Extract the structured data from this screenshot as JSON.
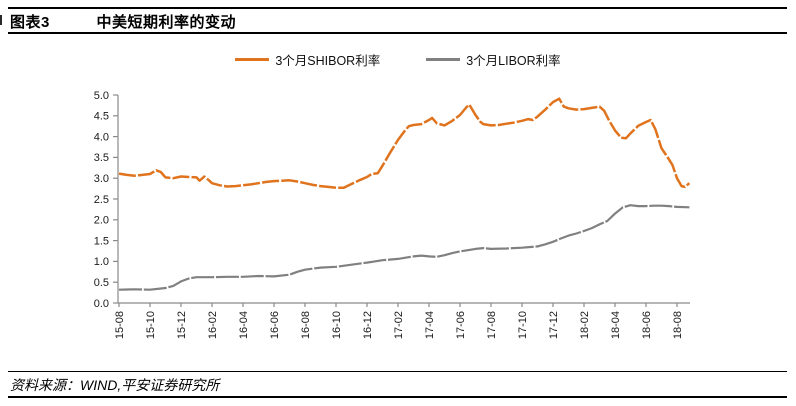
{
  "header": {
    "figure_label": "图表3",
    "title": "中美短期利率的变动"
  },
  "legend": [
    {
      "label": "3个月SHIBOR利率",
      "color": "#E0731D"
    },
    {
      "label": "3个月LIBOR利率",
      "color": "#808080"
    }
  ],
  "footer": {
    "source": "资料来源：WIND,平安证券研究所"
  },
  "chart_data": {
    "type": "line",
    "title": "中美短期利率的变动",
    "xlabel": "",
    "ylabel": "",
    "grid": false,
    "legend_position": "top-center",
    "x_unit": "months since 2015-08",
    "ylim": [
      0,
      5
    ],
    "y_tick_step": 0.5,
    "y_tick_labels": [
      "0.0",
      "0.5",
      "1.0",
      "1.5",
      "2.0",
      "2.5",
      "3.0",
      "3.5",
      "4.0",
      "4.5",
      "5.0"
    ],
    "x_tick_labels": [
      "15-08",
      "15-10",
      "15-12",
      "16-02",
      "16-04",
      "16-06",
      "16-08",
      "16-10",
      "16-12",
      "17-02",
      "17-04",
      "17-06",
      "17-08",
      "17-10",
      "17-12",
      "18-02",
      "18-04",
      "18-06",
      "18-08"
    ],
    "x_tick_months": [
      0,
      2,
      4,
      6,
      8,
      10,
      12,
      14,
      16,
      18,
      20,
      22,
      24,
      26,
      28,
      30,
      32,
      34,
      36
    ],
    "series": [
      {
        "name": "3个月SHIBOR利率",
        "color": "#E0731D",
        "points": [
          [
            0,
            3.11
          ],
          [
            0.5,
            3.08
          ],
          [
            1,
            3.06
          ],
          [
            1.5,
            3.08
          ],
          [
            2,
            3.1
          ],
          [
            2.4,
            3.19
          ],
          [
            2.7,
            3.15
          ],
          [
            3,
            3.02
          ],
          [
            3.5,
            3.0
          ],
          [
            4,
            3.04
          ],
          [
            4.5,
            3.03
          ],
          [
            5,
            3.02
          ],
          [
            5.2,
            2.94
          ],
          [
            5.5,
            3.04
          ],
          [
            5.8,
            2.95
          ],
          [
            6,
            2.88
          ],
          [
            6.5,
            2.83
          ],
          [
            7,
            2.8
          ],
          [
            7.5,
            2.81
          ],
          [
            8,
            2.83
          ],
          [
            8.5,
            2.85
          ],
          [
            9,
            2.88
          ],
          [
            9.5,
            2.91
          ],
          [
            10,
            2.93
          ],
          [
            10.5,
            2.94
          ],
          [
            11,
            2.95
          ],
          [
            11.5,
            2.92
          ],
          [
            12,
            2.88
          ],
          [
            12.5,
            2.84
          ],
          [
            13,
            2.81
          ],
          [
            13.5,
            2.79
          ],
          [
            14,
            2.77
          ],
          [
            14.5,
            2.77
          ],
          [
            15,
            2.86
          ],
          [
            15.5,
            2.95
          ],
          [
            16,
            3.03
          ],
          [
            16.3,
            3.1
          ],
          [
            16.7,
            3.12
          ],
          [
            17,
            3.3
          ],
          [
            17.5,
            3.62
          ],
          [
            18,
            3.92
          ],
          [
            18.4,
            4.12
          ],
          [
            18.7,
            4.25
          ],
          [
            19,
            4.28
          ],
          [
            19.5,
            4.3
          ],
          [
            20,
            4.4
          ],
          [
            20.2,
            4.45
          ],
          [
            20.5,
            4.32
          ],
          [
            21,
            4.27
          ],
          [
            21.5,
            4.38
          ],
          [
            22,
            4.52
          ],
          [
            22.4,
            4.7
          ],
          [
            22.6,
            4.77
          ],
          [
            23,
            4.52
          ],
          [
            23.3,
            4.36
          ],
          [
            23.5,
            4.3
          ],
          [
            24,
            4.27
          ],
          [
            24.5,
            4.28
          ],
          [
            25,
            4.31
          ],
          [
            25.5,
            4.34
          ],
          [
            26,
            4.38
          ],
          [
            26.4,
            4.42
          ],
          [
            26.7,
            4.4
          ],
          [
            27,
            4.48
          ],
          [
            27.5,
            4.65
          ],
          [
            28,
            4.83
          ],
          [
            28.4,
            4.91
          ],
          [
            28.7,
            4.72
          ],
          [
            29,
            4.68
          ],
          [
            29.5,
            4.65
          ],
          [
            30,
            4.66
          ],
          [
            30.5,
            4.69
          ],
          [
            31,
            4.72
          ],
          [
            31.3,
            4.62
          ],
          [
            31.6,
            4.4
          ],
          [
            32,
            4.15
          ],
          [
            32.4,
            3.97
          ],
          [
            32.7,
            3.96
          ],
          [
            33,
            4.08
          ],
          [
            33.5,
            4.26
          ],
          [
            34,
            4.35
          ],
          [
            34.3,
            4.4
          ],
          [
            34.6,
            4.18
          ],
          [
            35,
            3.72
          ],
          [
            35.4,
            3.5
          ],
          [
            35.7,
            3.32
          ],
          [
            36,
            3.0
          ],
          [
            36.3,
            2.81
          ],
          [
            36.5,
            2.79
          ],
          [
            36.8,
            2.88
          ]
        ]
      },
      {
        "name": "3个月LIBOR利率",
        "color": "#808080",
        "points": [
          [
            0,
            0.32
          ],
          [
            1,
            0.33
          ],
          [
            2,
            0.32
          ],
          [
            3,
            0.36
          ],
          [
            3.5,
            0.41
          ],
          [
            4,
            0.52
          ],
          [
            4.5,
            0.59
          ],
          [
            5,
            0.62
          ],
          [
            6,
            0.62
          ],
          [
            7,
            0.63
          ],
          [
            8,
            0.63
          ],
          [
            9,
            0.65
          ],
          [
            10,
            0.64
          ],
          [
            11,
            0.68
          ],
          [
            11.5,
            0.75
          ],
          [
            12,
            0.8
          ],
          [
            13,
            0.85
          ],
          [
            14,
            0.87
          ],
          [
            15,
            0.92
          ],
          [
            16,
            0.97
          ],
          [
            16.5,
            1.0
          ],
          [
            17,
            1.03
          ],
          [
            18,
            1.06
          ],
          [
            19,
            1.12
          ],
          [
            19.5,
            1.14
          ],
          [
            20,
            1.12
          ],
          [
            20.5,
            1.11
          ],
          [
            21,
            1.15
          ],
          [
            21.5,
            1.2
          ],
          [
            22,
            1.24
          ],
          [
            22.5,
            1.27
          ],
          [
            23,
            1.3
          ],
          [
            23.5,
            1.32
          ],
          [
            24,
            1.3
          ],
          [
            25,
            1.31
          ],
          [
            26,
            1.33
          ],
          [
            27,
            1.36
          ],
          [
            27.5,
            1.41
          ],
          [
            28,
            1.47
          ],
          [
            28.5,
            1.55
          ],
          [
            29,
            1.62
          ],
          [
            29.5,
            1.67
          ],
          [
            30,
            1.73
          ],
          [
            30.5,
            1.8
          ],
          [
            31,
            1.89
          ],
          [
            31.5,
            1.97
          ],
          [
            32,
            2.15
          ],
          [
            32.5,
            2.3
          ],
          [
            33,
            2.35
          ],
          [
            33.5,
            2.33
          ],
          [
            34,
            2.33
          ],
          [
            34.5,
            2.34
          ],
          [
            35,
            2.34
          ],
          [
            35.5,
            2.33
          ],
          [
            36,
            2.31
          ],
          [
            36.8,
            2.3
          ]
        ]
      }
    ]
  }
}
